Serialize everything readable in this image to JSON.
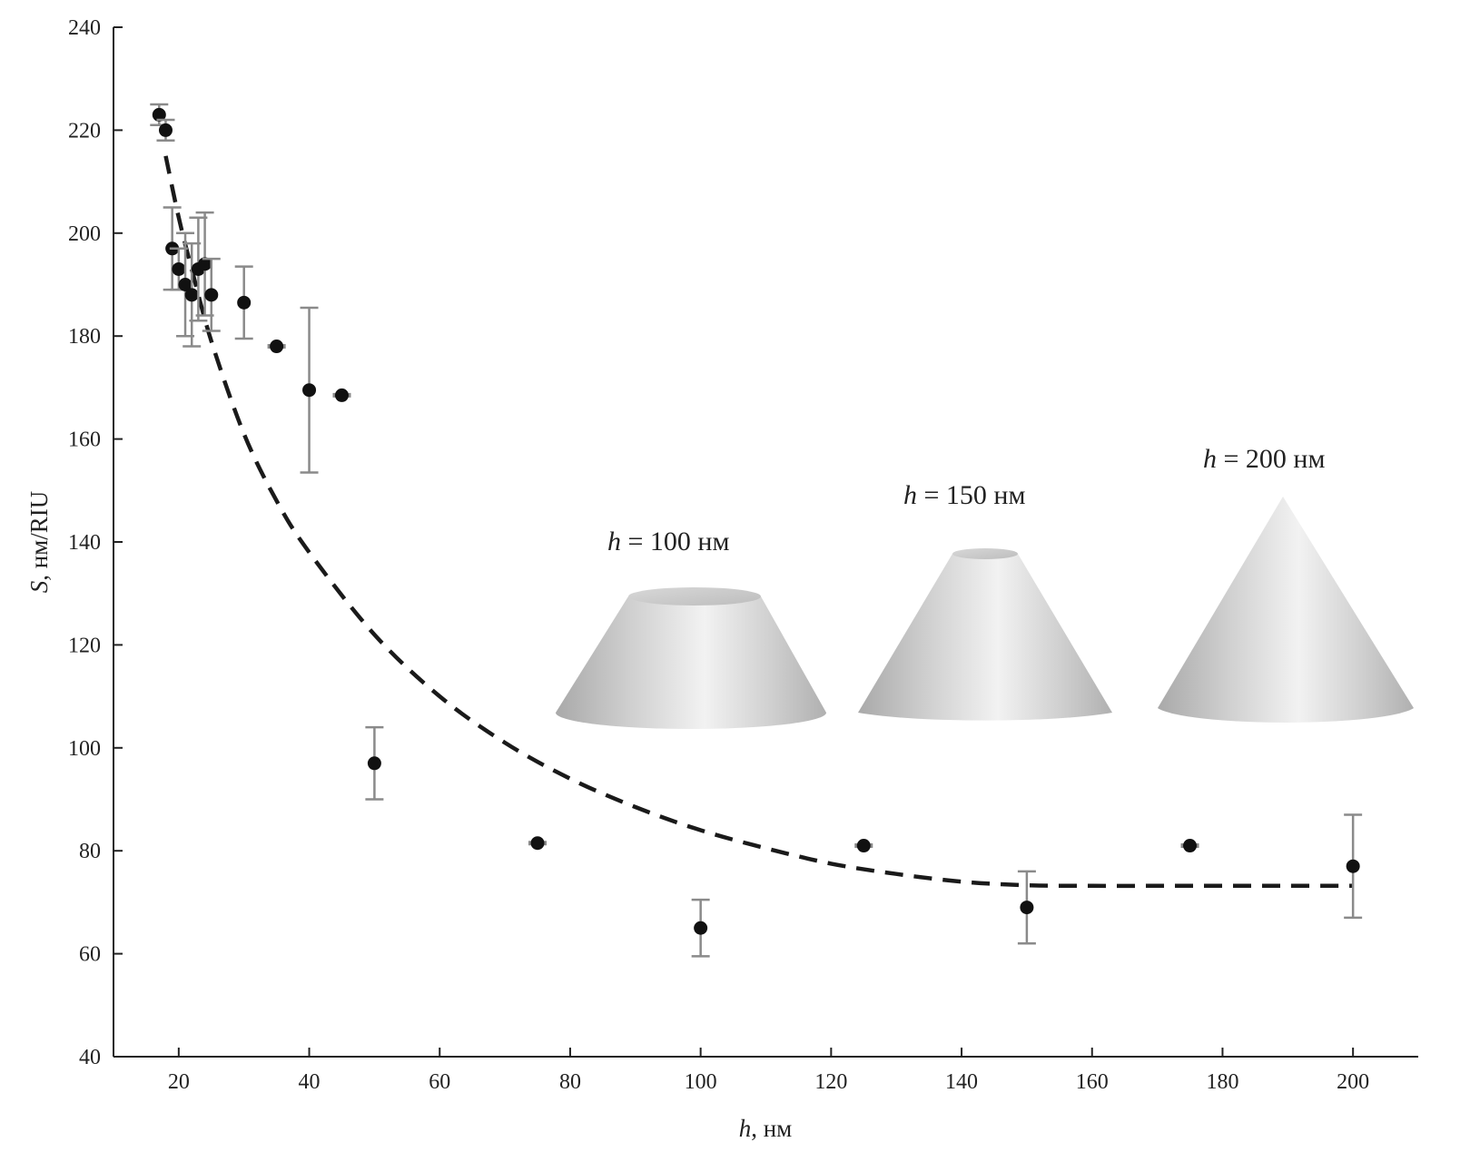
{
  "chart_data": {
    "type": "scatter",
    "xlabel": {
      "var": "h",
      "unit": ", нм"
    },
    "ylabel": {
      "var": "S",
      "unit": ", нм/RIU"
    },
    "xlim": [
      10,
      210
    ],
    "ylim": [
      40,
      240
    ],
    "x_ticks": [
      20,
      40,
      60,
      80,
      100,
      120,
      140,
      160,
      180,
      200
    ],
    "y_ticks": [
      40,
      60,
      80,
      100,
      120,
      140,
      160,
      180,
      200,
      220,
      240
    ],
    "grid": false,
    "series": [
      {
        "marker": "filled-circle",
        "points": [
          {
            "x": 17,
            "y": 223,
            "err": 2
          },
          {
            "x": 18,
            "y": 220,
            "err": 2
          },
          {
            "x": 19,
            "y": 197,
            "err": 8
          },
          {
            "x": 20,
            "y": 193,
            "err": 4
          },
          {
            "x": 21,
            "y": 190,
            "err": 10
          },
          {
            "x": 22,
            "y": 188,
            "err": 10
          },
          {
            "x": 23,
            "y": 193,
            "err": 10
          },
          {
            "x": 24,
            "y": 194,
            "err": 10
          },
          {
            "x": 25,
            "y": 188,
            "err": 7
          },
          {
            "x": 30,
            "y": 186.5,
            "err": 7
          },
          {
            "x": 35,
            "y": 178,
            "err": 1
          },
          {
            "x": 40,
            "y": 169.5,
            "err": 16
          },
          {
            "x": 45,
            "y": 168.5,
            "err": 1
          },
          {
            "x": 50,
            "y": 97,
            "err": 7
          },
          {
            "x": 75,
            "y": 81.5,
            "err": 1
          },
          {
            "x": 100,
            "y": 65,
            "err": 5.5
          },
          {
            "x": 125,
            "y": 81,
            "err": 1
          },
          {
            "x": 150,
            "y": 69,
            "err": 7
          },
          {
            "x": 175,
            "y": 81,
            "err": 1
          },
          {
            "x": 200,
            "y": 77,
            "err": 10
          }
        ]
      },
      {
        "style": "dashed-fit",
        "color": "#1a1a1a",
        "x": [
          18,
          20,
          22,
          25,
          30,
          35,
          40,
          50,
          60,
          70,
          80,
          90,
          100,
          110,
          120,
          130,
          140,
          150,
          160,
          170,
          180,
          190,
          200
        ],
        "y": [
          215,
          203,
          193,
          179,
          161,
          148,
          138,
          122,
          110,
          101,
          94,
          88.5,
          84,
          80.5,
          77.5,
          75.5,
          74,
          73.3,
          73.2,
          73.2,
          73.2,
          73.2,
          73.2
        ]
      }
    ],
    "annotations": [
      {
        "var": "h",
        "text": " = 100 нм"
      },
      {
        "var": "h",
        "text": " = 150 нм"
      },
      {
        "var": "h",
        "text": " = 200 нм"
      }
    ]
  },
  "colors": {
    "axis": "#222222",
    "marker": "#111111",
    "error_bar": "#8a8a8a",
    "cone_light": "#f2f2f2",
    "cone_dark": "#a9a9a9"
  }
}
